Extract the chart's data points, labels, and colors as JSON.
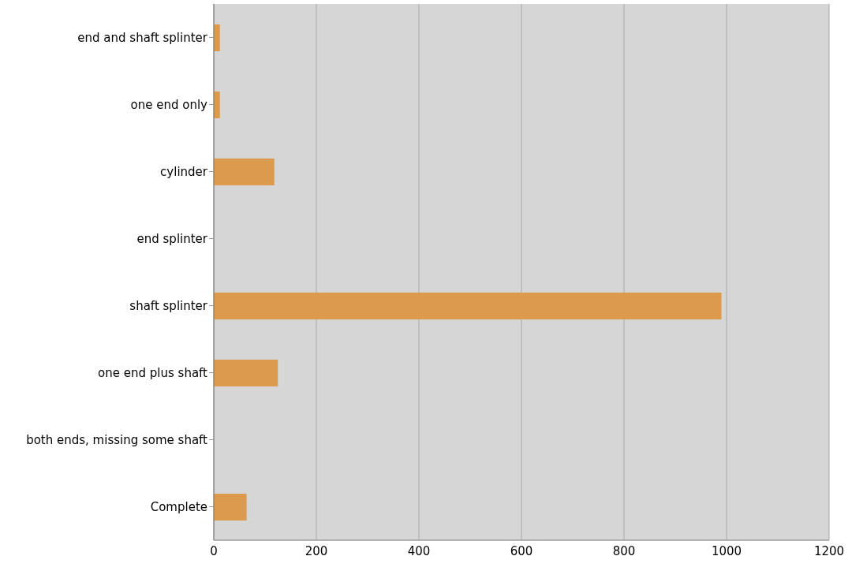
{
  "chart_data": {
    "type": "bar",
    "orientation": "horizontal",
    "categories": [
      "end and shaft splinter",
      "one end only",
      "cylinder",
      "end splinter",
      "shaft splinter",
      "one end plus shaft",
      "both ends, missing some shaft",
      "Complete"
    ],
    "values": [
      12,
      12,
      118,
      0,
      990,
      125,
      0,
      64
    ],
    "color": "#dc9b4c",
    "xlim": [
      0,
      1200
    ],
    "xticks": [
      0,
      200,
      400,
      600,
      800,
      1000,
      1200
    ],
    "grid": "x"
  }
}
